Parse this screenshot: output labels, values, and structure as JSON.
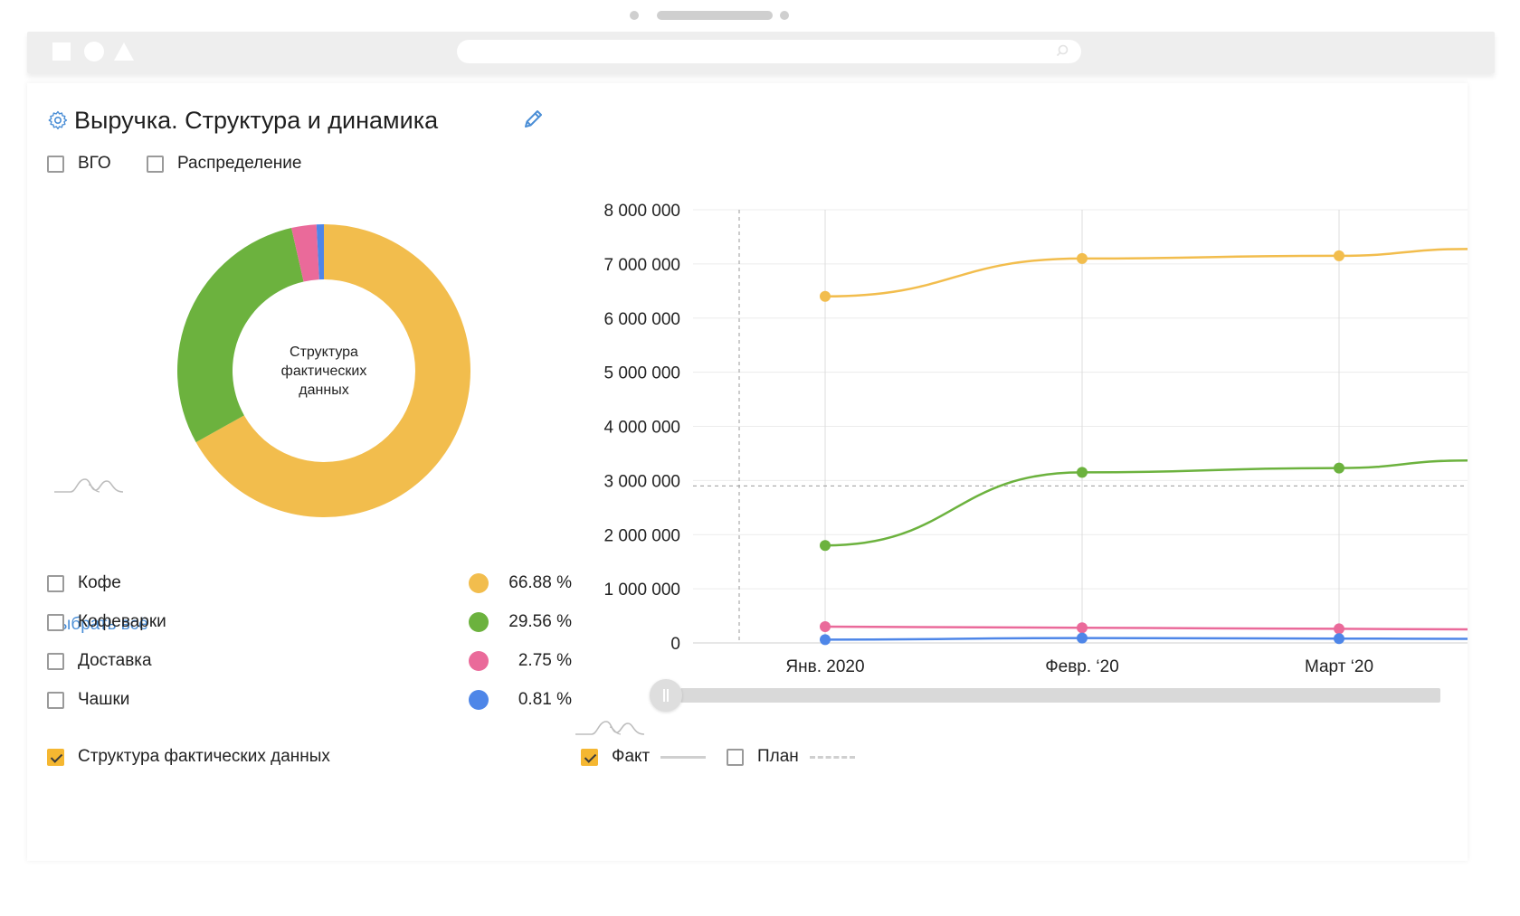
{
  "window": {
    "url_text": ""
  },
  "panel": {
    "title": "Выручка. Структура и динамика",
    "options": [
      {
        "label": "ВГО",
        "checked": false
      },
      {
        "label": "Распределение",
        "checked": false
      }
    ],
    "select_all": "Выбрать всё",
    "structure_toggle": {
      "label": "Структура фактических данных",
      "checked": true
    },
    "mode_toggles": [
      {
        "label": "Факт",
        "checked": true,
        "line": "solid"
      },
      {
        "label": "План",
        "checked": false,
        "line": "dashed"
      }
    ]
  },
  "legend": [
    {
      "label": "Кофе",
      "pct": "66.88 %",
      "color": "#f2bd4d",
      "checked": false
    },
    {
      "label": "Кофеварки",
      "pct": "29.56 %",
      "color": "#6cb23e",
      "checked": false
    },
    {
      "label": "Доставка",
      "pct": "2.75 %",
      "color": "#ea6a9a",
      "checked": false
    },
    {
      "label": "Чашки",
      "pct": "0.81 %",
      "color": "#4e86e8",
      "checked": false
    }
  ],
  "chart_data": [
    {
      "type": "pie",
      "center_label": "Структура фактических данных",
      "categories": [
        "Кофе",
        "Кофеварки",
        "Доставка",
        "Чашки"
      ],
      "values": [
        66.88,
        29.56,
        2.75,
        0.81
      ],
      "colors": [
        "#f2bd4d",
        "#6cb23e",
        "#ea6a9a",
        "#4e86e8"
      ]
    },
    {
      "type": "line",
      "x": [
        "Янв. 2020",
        "Февр. ‘20",
        "Март ‘20"
      ],
      "ylim": [
        0,
        8000000
      ],
      "yticks": [
        0,
        1000000,
        2000000,
        3000000,
        4000000,
        5000000,
        6000000,
        7000000,
        8000000
      ],
      "ytick_labels": [
        "0",
        "1 000 000",
        "2 000 000",
        "3 000 000",
        "4 000 000",
        "5 000 000",
        "6 000 000",
        "7 000 000",
        "8 000 000"
      ],
      "grid": true,
      "reference_line_y": 2900000,
      "series": [
        {
          "name": "Кофе",
          "color": "#f2bd4d",
          "values": [
            6400000,
            7100000,
            7150000
          ]
        },
        {
          "name": "Кофеварки",
          "color": "#6cb23e",
          "values": [
            1800000,
            3150000,
            3230000
          ]
        },
        {
          "name": "Доставка",
          "color": "#ea6a9a",
          "values": [
            300000,
            280000,
            260000
          ]
        },
        {
          "name": "Чашки",
          "color": "#4e86e8",
          "values": [
            60000,
            90000,
            80000
          ]
        }
      ]
    }
  ]
}
